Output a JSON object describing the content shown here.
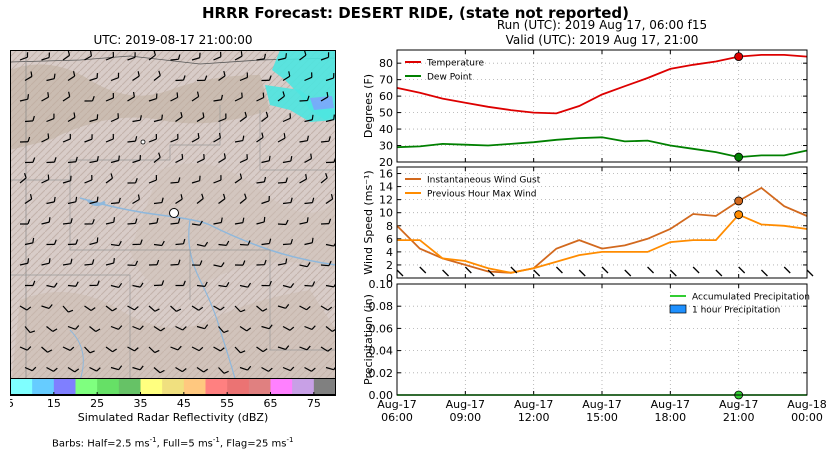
{
  "header": {
    "suptitle": "HRRR Forecast: DESERT RIDE, (state not reported)",
    "run_line": "Run (UTC): 2019 Aug 17, 06:00 f15",
    "valid_line": "Valid (UTC): 2019 Aug 17, 21:00"
  },
  "map": {
    "title": "UTC: 2019-08-17 21:00:00",
    "colorbar_caption": "Simulated Radar Reflectivity (dBZ)",
    "colorbar_ticks": [
      "5",
      "15",
      "25",
      "35",
      "45",
      "55",
      "65",
      "75"
    ],
    "colorbar_colors": [
      "#7fffff",
      "#66ccff",
      "#7f7fff",
      "#7fff7f",
      "#66e066",
      "#66c266",
      "#ffff7f",
      "#f0e07f",
      "#ffc87f",
      "#ff8080",
      "#eb7373",
      "#e08080",
      "#ff80ff",
      "#c8a0e6",
      "#808080"
    ],
    "barbs_note": {
      "prefix": "Barbs: Half=2.5 ms",
      "sup1": "-1",
      "mid1": ", Full=5 ms",
      "sup2": "-1",
      "mid2": ", Flag=25 ms",
      "sup3": "-1"
    },
    "colors": {
      "terrain": "#d8ccc8",
      "radar": "#4ce6e0",
      "water": "#8fb8dc"
    }
  },
  "chart_data": [
    {
      "type": "line",
      "panel": "temperature",
      "x": [
        "06:00",
        "07:00",
        "08:00",
        "09:00",
        "10:00",
        "11:00",
        "12:00",
        "13:00",
        "14:00",
        "15:00",
        "16:00",
        "17:00",
        "18:00",
        "19:00",
        "20:00",
        "21:00",
        "22:00",
        "23:00",
        "00:00"
      ],
      "series": [
        {
          "name": "Temperature",
          "color": "#dd0000",
          "values": [
            65,
            62,
            58.5,
            56,
            53.5,
            51.5,
            50,
            49.5,
            54,
            61,
            66,
            71,
            76.5,
            79,
            81,
            84,
            85,
            85,
            84
          ]
        },
        {
          "name": "Dew Point",
          "color": "#008000",
          "values": [
            29,
            29.5,
            31,
            30.5,
            30,
            31,
            32,
            33.5,
            34.5,
            35,
            32.5,
            33,
            30,
            28,
            26,
            23,
            24,
            24,
            27
          ]
        }
      ],
      "highlight_index": 15,
      "ylim": [
        20,
        88
      ],
      "yticks": [
        20,
        30,
        40,
        50,
        60,
        70,
        80
      ],
      "ylabel": "Degrees (F)",
      "legend": "top-left",
      "grid": true
    },
    {
      "type": "line",
      "panel": "wind",
      "x": [
        "06:00",
        "07:00",
        "08:00",
        "09:00",
        "10:00",
        "11:00",
        "12:00",
        "13:00",
        "14:00",
        "15:00",
        "16:00",
        "17:00",
        "18:00",
        "19:00",
        "20:00",
        "21:00",
        "22:00",
        "23:00",
        "00:00"
      ],
      "series": [
        {
          "name": "Instantaneous Wind Gust",
          "color": "#d2691e",
          "values": [
            8,
            4.5,
            3,
            2,
            1,
            0.8,
            1.5,
            4.5,
            5.8,
            4.5,
            5,
            6,
            7.5,
            9.8,
            9.5,
            11.8,
            13.8,
            11,
            9.5
          ]
        },
        {
          "name": "Previous Hour Max Wind",
          "color": "#ff8c00",
          "values": [
            5.8,
            5.8,
            3,
            2.6,
            1.5,
            0.8,
            1.5,
            2.5,
            3.5,
            4,
            4,
            4,
            5.5,
            5.8,
            5.8,
            9.7,
            8.2,
            8,
            7.5
          ]
        }
      ],
      "highlight_index": 15,
      "ylim": [
        0,
        17
      ],
      "yticks": [
        0,
        2,
        4,
        6,
        8,
        10,
        12,
        14,
        16
      ],
      "ylabel": "Wind Speed (ms⁻¹)",
      "legend": "top-left",
      "grid": true
    },
    {
      "type": "bar",
      "panel": "precipitation",
      "x": [
        "06:00",
        "07:00",
        "08:00",
        "09:00",
        "10:00",
        "11:00",
        "12:00",
        "13:00",
        "14:00",
        "15:00",
        "16:00",
        "17:00",
        "18:00",
        "19:00",
        "20:00",
        "21:00",
        "22:00",
        "23:00",
        "00:00"
      ],
      "series": [
        {
          "name": "Accumulated Precipitation",
          "color": "#32cd32",
          "values": [
            0,
            0,
            0,
            0,
            0,
            0,
            0,
            0,
            0,
            0,
            0,
            0,
            0,
            0,
            0,
            0,
            0,
            0,
            0
          ]
        },
        {
          "name": "1 hour Precipitation",
          "color": "#1e90ff",
          "values": [
            0,
            0,
            0,
            0,
            0,
            0,
            0,
            0,
            0,
            0,
            0,
            0,
            0,
            0,
            0,
            0,
            0,
            0,
            0
          ]
        }
      ],
      "highlight_index": 15,
      "ylim": [
        0,
        0.1
      ],
      "yticks": [
        "0.00",
        "0.02",
        "0.04",
        "0.06",
        "0.08",
        "0.10"
      ],
      "ylabel": "Precipitation (in)",
      "legend": "top-right",
      "grid": true,
      "xtick_labels": [
        {
          "day": "Aug-17",
          "time": "06:00"
        },
        {
          "day": "Aug-17",
          "time": "09:00"
        },
        {
          "day": "Aug-17",
          "time": "12:00"
        },
        {
          "day": "Aug-17",
          "time": "15:00"
        },
        {
          "day": "Aug-17",
          "time": "18:00"
        },
        {
          "day": "Aug-17",
          "time": "21:00"
        },
        {
          "day": "Aug-18",
          "time": "00:00"
        }
      ]
    }
  ]
}
